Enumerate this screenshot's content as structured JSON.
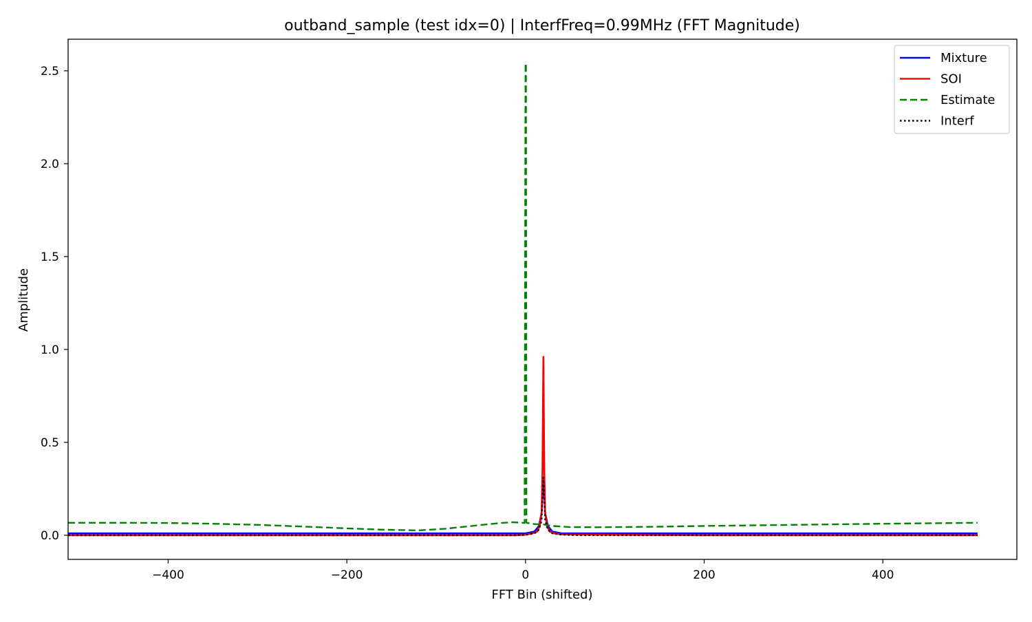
{
  "chart_data": {
    "type": "line",
    "title": "outband_sample (test idx=0) | InterfFreq=0.99MHz (FFT Magnitude)",
    "xlabel": "FFT Bin (shifted)",
    "ylabel": "Amplitude",
    "xlim": [
      -512,
      550
    ],
    "ylim": [
      -0.13,
      2.67
    ],
    "x_ticks": [
      -400,
      -200,
      0,
      200,
      400
    ],
    "x_tick_labels": [
      "−400",
      "−200",
      "0",
      "200",
      "400"
    ],
    "y_ticks": [
      0.0,
      0.5,
      1.0,
      1.5,
      2.0,
      2.5
    ],
    "y_tick_labels": [
      "0.0",
      "0.5",
      "1.0",
      "1.5",
      "2.0",
      "2.5"
    ],
    "grid": false,
    "legend_position": "top-right",
    "series": [
      {
        "name": "Mixture",
        "color": "#0000ff",
        "style": "solid",
        "x": [
          -512,
          -400,
          -300,
          -200,
          -100,
          -40,
          -10,
          0,
          10,
          15,
          18,
          20,
          22,
          25,
          30,
          40,
          60,
          100,
          200,
          300,
          400,
          506
        ],
        "y": [
          0.01,
          0.01,
          0.01,
          0.01,
          0.01,
          0.01,
          0.01,
          0.01,
          0.02,
          0.05,
          0.12,
          0.31,
          0.12,
          0.05,
          0.02,
          0.01,
          0.01,
          0.01,
          0.01,
          0.01,
          0.01,
          0.01
        ]
      },
      {
        "name": "SOI",
        "color": "#ff0000",
        "style": "solid",
        "x": [
          -512,
          -400,
          -300,
          -200,
          -100,
          -40,
          -10,
          0,
          8,
          13,
          16,
          18,
          19,
          20,
          21,
          22,
          24,
          27,
          32,
          40,
          60,
          100,
          200,
          300,
          400,
          506
        ],
        "y": [
          0.0,
          0.0,
          0.0,
          0.0,
          0.0,
          0.0,
          0.0,
          0.003,
          0.01,
          0.02,
          0.05,
          0.12,
          0.35,
          0.96,
          0.35,
          0.12,
          0.05,
          0.02,
          0.01,
          0.005,
          0.003,
          0.002,
          0.0,
          0.0,
          0.0,
          0.0
        ]
      },
      {
        "name": "Estimate",
        "color": "#008000",
        "style": "dashed",
        "x": [
          -512,
          -450,
          -400,
          -350,
          -300,
          -250,
          -200,
          -160,
          -120,
          -90,
          -60,
          -30,
          -15,
          -5,
          -1,
          0,
          0.5,
          1,
          2,
          10,
          20,
          30,
          50,
          80,
          150,
          200,
          300,
          400,
          506
        ],
        "y": [
          0.067,
          0.067,
          0.066,
          0.062,
          0.056,
          0.047,
          0.037,
          0.03,
          0.026,
          0.035,
          0.05,
          0.065,
          0.07,
          0.068,
          0.066,
          2.54,
          2.54,
          0.068,
          0.066,
          0.06,
          0.058,
          0.05,
          0.044,
          0.043,
          0.046,
          0.05,
          0.056,
          0.062,
          0.067
        ]
      },
      {
        "name": "Interf",
        "color": "#000000",
        "style": "dotted",
        "x": [
          -512,
          -400,
          -300,
          -200,
          -100,
          -40,
          -10,
          0,
          10,
          15,
          18,
          19,
          20,
          21,
          22,
          25,
          30,
          40,
          60,
          100,
          200,
          300,
          400,
          506
        ],
        "y": [
          0.0,
          0.0,
          0.0,
          0.0,
          0.0,
          0.0,
          0.0,
          0.002,
          0.01,
          0.03,
          0.08,
          0.2,
          0.31,
          0.2,
          0.08,
          0.03,
          0.01,
          0.003,
          0.0,
          0.0,
          0.0,
          0.0,
          0.0,
          0.0
        ]
      }
    ]
  }
}
